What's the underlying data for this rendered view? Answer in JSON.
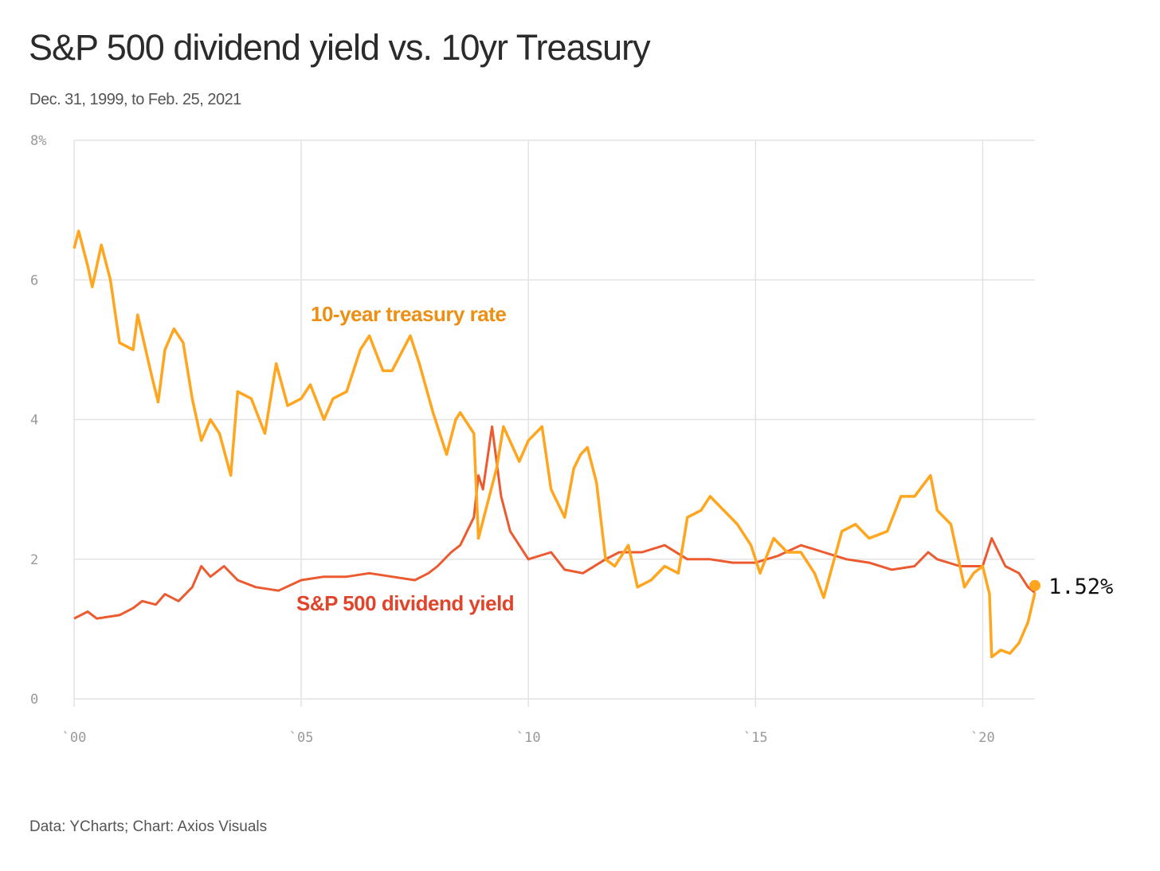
{
  "chart_data": {
    "type": "line",
    "title": "S&P 500 dividend yield vs. 10yr Treasury",
    "subtitle": "Dec. 31, 1999, to Feb. 25, 2021",
    "source": "Data: YCharts; Chart: Axios Visuals",
    "xlabel": "",
    "ylabel": "",
    "xlim": [
      2000,
      2021.15
    ],
    "ylim": [
      0,
      8
    ],
    "yticks": [
      {
        "v": 8,
        "label": "8%"
      },
      {
        "v": 6,
        "label": "6"
      },
      {
        "v": 4,
        "label": "4"
      },
      {
        "v": 2,
        "label": "2"
      },
      {
        "v": 0,
        "label": "0"
      }
    ],
    "xticks": [
      {
        "v": 2000,
        "label": "`00"
      },
      {
        "v": 2005,
        "label": "`05"
      },
      {
        "v": 2010,
        "label": "`10"
      },
      {
        "v": 2015,
        "label": "`15"
      },
      {
        "v": 2020,
        "label": "`20"
      }
    ],
    "end_label": "1.52%",
    "series": [
      {
        "name": "10-year treasury rate",
        "color": "#ffa51e",
        "label_color": "#ec8f12",
        "x": [
          2000.0,
          2000.1,
          2000.3,
          2000.4,
          2000.6,
          2000.8,
          2001.0,
          2001.3,
          2001.4,
          2001.7,
          2001.85,
          2002.0,
          2002.2,
          2002.4,
          2002.6,
          2002.8,
          2003.0,
          2003.2,
          2003.45,
          2003.6,
          2003.9,
          2004.2,
          2004.45,
          2004.7,
          2005.0,
          2005.2,
          2005.5,
          2005.7,
          2006.0,
          2006.3,
          2006.5,
          2006.8,
          2007.0,
          2007.4,
          2007.6,
          2007.9,
          2008.2,
          2008.4,
          2008.5,
          2008.8,
          2008.9,
          2009.1,
          2009.3,
          2009.45,
          2009.8,
          2010.0,
          2010.3,
          2010.5,
          2010.8,
          2011.0,
          2011.15,
          2011.3,
          2011.5,
          2011.7,
          2011.9,
          2012.2,
          2012.4,
          2012.7,
          2013.0,
          2013.3,
          2013.5,
          2013.8,
          2014.0,
          2014.3,
          2014.6,
          2014.9,
          2015.1,
          2015.4,
          2015.7,
          2016.0,
          2016.3,
          2016.5,
          2016.9,
          2017.2,
          2017.5,
          2017.9,
          2018.2,
          2018.5,
          2018.85,
          2019.0,
          2019.3,
          2019.6,
          2019.8,
          2020.0,
          2020.15,
          2020.2,
          2020.4,
          2020.6,
          2020.8,
          2021.0,
          2021.15
        ],
        "y": [
          6.45,
          6.7,
          6.2,
          5.9,
          6.5,
          6.0,
          5.1,
          5.0,
          5.5,
          4.65,
          4.25,
          5.0,
          5.3,
          5.1,
          4.3,
          3.7,
          4.0,
          3.8,
          3.2,
          4.4,
          4.3,
          3.8,
          4.8,
          4.2,
          4.3,
          4.5,
          4.0,
          4.3,
          4.4,
          5.0,
          5.2,
          4.7,
          4.7,
          5.2,
          4.8,
          4.1,
          3.5,
          4.0,
          4.1,
          3.8,
          2.3,
          2.8,
          3.3,
          3.9,
          3.4,
          3.7,
          3.9,
          3.0,
          2.6,
          3.3,
          3.5,
          3.6,
          3.1,
          2.0,
          1.9,
          2.2,
          1.6,
          1.7,
          1.9,
          1.8,
          2.6,
          2.7,
          2.9,
          2.7,
          2.5,
          2.2,
          1.8,
          2.3,
          2.1,
          2.1,
          1.8,
          1.45,
          2.4,
          2.5,
          2.3,
          2.4,
          2.9,
          2.9,
          3.2,
          2.7,
          2.5,
          1.6,
          1.8,
          1.9,
          1.5,
          0.6,
          0.7,
          0.65,
          0.8,
          1.1,
          1.52
        ]
      },
      {
        "name": "S&P 500 dividend yield",
        "color": "#ec5a2f",
        "label_color": "#e0442a",
        "x": [
          2000.0,
          2000.3,
          2000.5,
          2001.0,
          2001.3,
          2001.5,
          2001.8,
          2002.0,
          2002.3,
          2002.6,
          2002.8,
          2003.0,
          2003.3,
          2003.6,
          2004.0,
          2004.5,
          2005.0,
          2005.5,
          2006.0,
          2006.5,
          2007.0,
          2007.5,
          2007.8,
          2008.0,
          2008.3,
          2008.5,
          2008.8,
          2008.9,
          2009.0,
          2009.2,
          2009.4,
          2009.6,
          2010.0,
          2010.5,
          2010.8,
          2011.2,
          2011.7,
          2012.0,
          2012.5,
          2013.0,
          2013.5,
          2014.0,
          2014.5,
          2015.0,
          2015.5,
          2016.0,
          2016.5,
          2017.0,
          2017.5,
          2018.0,
          2018.5,
          2018.8,
          2019.0,
          2019.5,
          2020.0,
          2020.2,
          2020.5,
          2020.8,
          2021.0,
          2021.15
        ],
        "y": [
          1.15,
          1.25,
          1.15,
          1.2,
          1.3,
          1.4,
          1.35,
          1.5,
          1.4,
          1.6,
          1.9,
          1.75,
          1.9,
          1.7,
          1.6,
          1.55,
          1.7,
          1.75,
          1.75,
          1.8,
          1.75,
          1.7,
          1.8,
          1.9,
          2.1,
          2.2,
          2.6,
          3.2,
          3.0,
          3.9,
          2.9,
          2.4,
          2.0,
          2.1,
          1.85,
          1.8,
          2.0,
          2.1,
          2.1,
          2.2,
          2.0,
          2.0,
          1.95,
          1.95,
          2.05,
          2.2,
          2.1,
          2.0,
          1.95,
          1.85,
          1.9,
          2.1,
          2.0,
          1.9,
          1.9,
          2.3,
          1.9,
          1.8,
          1.6,
          1.52
        ]
      }
    ]
  }
}
